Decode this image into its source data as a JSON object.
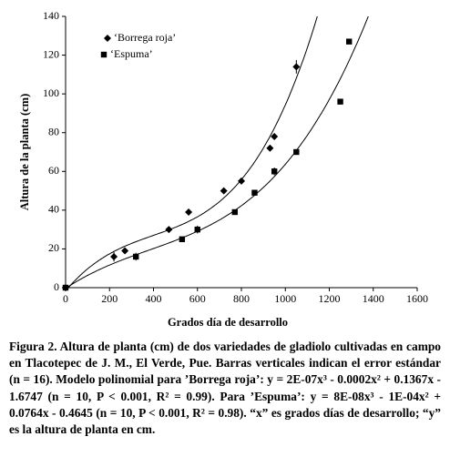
{
  "chart_data": {
    "type": "scatter",
    "x_label": "Grados día de desarrollo",
    "y_label": "Altura de la planta (cm)",
    "xlim": [
      0,
      1600
    ],
    "xticks": [
      0,
      200,
      400,
      600,
      800,
      1000,
      1200,
      1400,
      1600
    ],
    "ylim": [
      0,
      140
    ],
    "yticks": [
      0,
      20,
      40,
      60,
      80,
      100,
      120,
      140
    ],
    "grid": false,
    "legend": "top-left",
    "trendline": "cubic",
    "series": [
      {
        "name": "‘Borrega roja’",
        "color": "#000000",
        "marker": "diamond",
        "x": [
          0,
          220,
          270,
          470,
          560,
          720,
          800,
          930,
          950,
          1050
        ],
        "values": [
          0,
          16,
          19,
          30,
          39,
          50,
          55,
          72,
          78,
          114
        ],
        "errors": [
          0,
          2.5,
          1,
          1,
          1.5,
          1,
          1,
          1.5,
          1,
          3.5
        ]
      },
      {
        "name": "‘Espuma’",
        "color": "#000000",
        "marker": "square",
        "x": [
          0,
          320,
          530,
          600,
          770,
          860,
          950,
          1050,
          1250,
          1290
        ],
        "values": [
          0,
          16,
          25,
          30,
          39,
          49,
          60,
          70,
          96,
          127
        ],
        "errors": [
          0,
          2,
          1,
          2,
          1,
          1,
          2,
          1,
          1,
          1
        ]
      }
    ],
    "caption": "Figura 2. Altura de planta (cm) de dos variedades de gladiolo cultivadas en campo en Tlacotepec de J. M., El Verde, Pue. Barras verticales indican el error estándar (n = 16). Modelo polinomial para ’Borrega roja’: y = 2E-07x³ - 0.0002x² + 0.1367x - 1.6747 (n = 10, P < 0.001, R² = 0.99). Para ’Espuma’: y = 8E-08x³ - 1E-04x² + 0.0764x - 0.4645 (n = 10, P < 0.001, R² = 0.98). “x” es grados días de desarrollo; “y” es la altura de planta en cm."
  }
}
